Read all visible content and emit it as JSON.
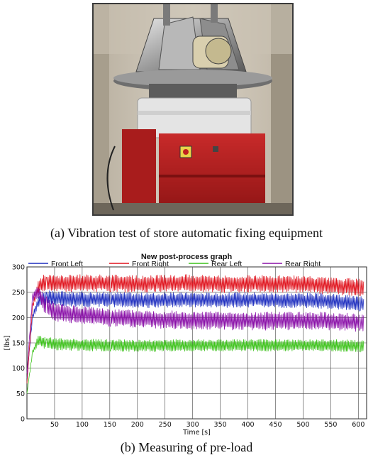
{
  "figure": {
    "caption_a": "(a) Vibration test of store automatic fixing equipment",
    "caption_b": "(b) Measuring of pre-load"
  },
  "chart_data": {
    "type": "line",
    "title": "New post-process graph",
    "xlabel": "Time [s]",
    "ylabel": "[lbs]",
    "xlim": [
      0,
      615
    ],
    "ylim": [
      0,
      300
    ],
    "x_ticks": [
      50,
      100,
      150,
      200,
      250,
      300,
      350,
      400,
      450,
      500,
      550,
      600
    ],
    "x_tick_labels": [
      "50",
      "100",
      "150",
      "200",
      "250",
      "300",
      "350",
      "400",
      "450",
      "500",
      "550",
      "600"
    ],
    "y_ticks": [
      0,
      50,
      100,
      150,
      200,
      250,
      300
    ],
    "y_tick_labels": [
      "0",
      "50",
      "100",
      "150",
      "200",
      "250",
      "300"
    ],
    "grid": true,
    "legend_position": "top",
    "series": [
      {
        "name": "Front Left",
        "color": "#1f2fbf",
        "x": [
          0,
          10,
          20,
          30,
          50,
          100,
          150,
          200,
          250,
          300,
          350,
          400,
          450,
          500,
          550,
          600,
          610
        ],
        "y": [
          80,
          200,
          230,
          238,
          238,
          236,
          236,
          234,
          234,
          235,
          234,
          235,
          234,
          234,
          232,
          228,
          226
        ],
        "amplitude": 15
      },
      {
        "name": "Front Right",
        "color": "#e0141e",
        "x": [
          0,
          10,
          20,
          30,
          50,
          100,
          150,
          200,
          250,
          300,
          350,
          400,
          450,
          500,
          550,
          600,
          610
        ],
        "y": [
          70,
          220,
          262,
          268,
          267,
          268,
          268,
          266,
          268,
          268,
          266,
          267,
          266,
          266,
          262,
          260,
          258
        ],
        "amplitude": 17
      },
      {
        "name": "Rear Left",
        "color": "#3cc21a",
        "x": [
          0,
          10,
          20,
          30,
          50,
          100,
          150,
          200,
          250,
          300,
          350,
          400,
          450,
          500,
          550,
          600,
          610
        ],
        "y": [
          50,
          130,
          155,
          150,
          148,
          146,
          145,
          144,
          145,
          145,
          145,
          145,
          145,
          145,
          145,
          144,
          144
        ],
        "amplitude": 12
      },
      {
        "name": "Rear Right",
        "color": "#8a10a8",
        "x": [
          0,
          10,
          20,
          30,
          50,
          100,
          150,
          200,
          250,
          300,
          350,
          400,
          450,
          500,
          550,
          600,
          610
        ],
        "y": [
          90,
          240,
          250,
          230,
          210,
          205,
          200,
          198,
          196,
          194,
          194,
          193,
          193,
          193,
          193,
          190,
          188
        ],
        "amplitude": 18
      }
    ]
  }
}
